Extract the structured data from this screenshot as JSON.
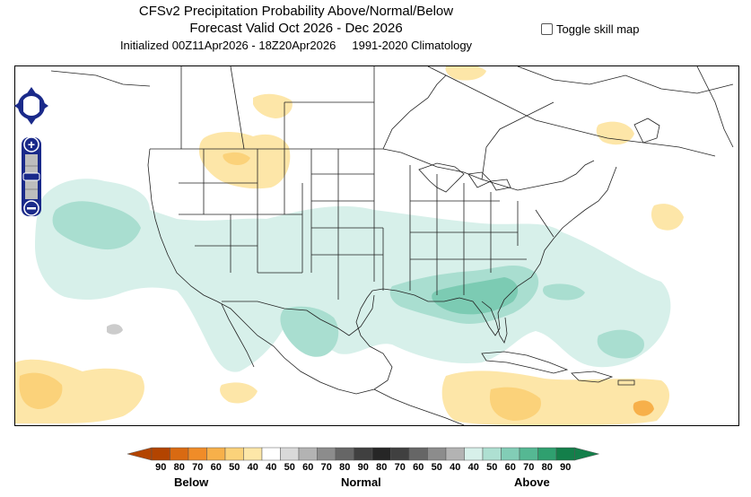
{
  "header": {
    "title": "CFSv2 Precipitation Probability Above/Normal/Below",
    "valid": "Forecast Valid Oct 2026 - Dec 2026",
    "initialized": "Initialized 00Z11Apr2026 - 18Z20Apr2026",
    "climatology": "1991-2020 Climatology"
  },
  "skill_toggle": {
    "label": "Toggle skill map",
    "checked": false
  },
  "map_controls": {
    "pan_icon": "pan-arrows-icon",
    "zoom_in": "+",
    "zoom_out": "−"
  },
  "colorbar": {
    "below_colors": [
      "#b34400",
      "#d96a12",
      "#f08c28",
      "#f7b04a",
      "#fbd27a",
      "#fde7a8"
    ],
    "normal_colors": [
      "#ffffff",
      "#d9d9d9",
      "#b3b3b3",
      "#8c8c8c",
      "#666666",
      "#404040",
      "#262626",
      "#404040",
      "#666666",
      "#8c8c8c",
      "#b3b3b3",
      "#d9d9d9",
      "#ffffff"
    ],
    "above_colors": [
      "#d7f0ea",
      "#aee0d2",
      "#82cdb6",
      "#55b893",
      "#2fa06f",
      "#137f4a"
    ],
    "labels": [
      "90",
      "80",
      "70",
      "60",
      "50",
      "40",
      "40",
      "50",
      "60",
      "70",
      "80",
      "90",
      "80",
      "70",
      "60",
      "50",
      "40",
      "40",
      "50",
      "60",
      "70",
      "80",
      "90"
    ],
    "categories": [
      "Below",
      "Normal",
      "Above"
    ]
  },
  "map_colors": {
    "below_light": "#fde6a8",
    "below_mid": "#fbd27a",
    "below_dark": "#f7b04a",
    "above_light": "#d7f0ea",
    "above_mid": "#a9ded0",
    "above_dark": "#7ccbb3",
    "gray": "#cccccc"
  }
}
